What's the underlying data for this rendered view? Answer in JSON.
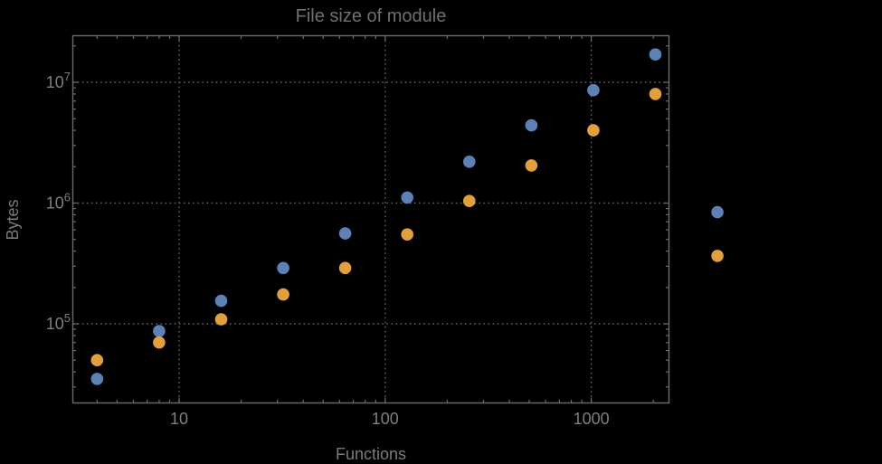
{
  "chart_data": {
    "type": "scatter",
    "title": "File size of module",
    "xlabel": "Functions",
    "ylabel": "Bytes",
    "x_scale": "log",
    "y_scale": "log",
    "xlim": [
      3.05,
      2380
    ],
    "ylim": [
      22000,
      24100000
    ],
    "grid": "dotted gridlines at each decade (x: 10,100,1000; y: 1e5,1e6,1e7)",
    "legend": "none",
    "background": "#000000",
    "x_tick_labels": [
      "10",
      "100",
      "1000"
    ],
    "x_tick_values": [
      10,
      100,
      1000
    ],
    "y_tick_base": "10",
    "y_tick_exponents": [
      5,
      6,
      7
    ],
    "y_tick_values": [
      100000,
      1000000,
      10000000
    ],
    "x": [
      4,
      8,
      16,
      32,
      64,
      128,
      256,
      512,
      1024,
      2048,
      4096
    ],
    "series": [
      {
        "name": "series-1-blue",
        "color": "#5E81B5",
        "values": [
          35000,
          87000,
          155000,
          290000,
          560000,
          1110000,
          2200000,
          4400000,
          8600000,
          17000000,
          840000
        ]
      },
      {
        "name": "series-2-orange",
        "color": "#E1A03C",
        "values": [
          50000,
          70000,
          109000,
          175000,
          290000,
          550000,
          1040000,
          2050000,
          4000000,
          8000000,
          365000
        ]
      }
    ],
    "colors": {
      "frame": "#6b6b6b",
      "grid": "#606060",
      "tick_text": "#7e7e7e",
      "title_text": "#707070"
    }
  }
}
